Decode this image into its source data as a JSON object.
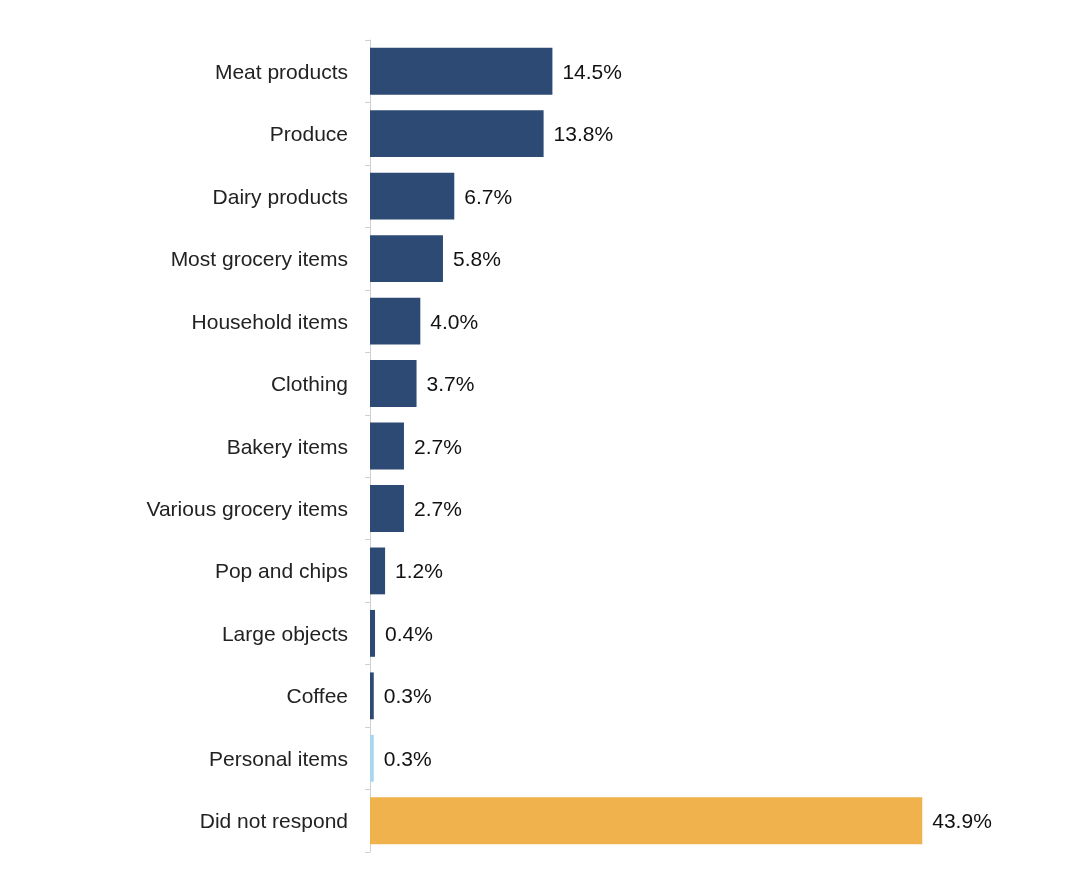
{
  "chart_data": {
    "type": "bar",
    "orientation": "horizontal",
    "categories": [
      "Meat products",
      "Produce",
      "Dairy products",
      "Most grocery items",
      "Household items",
      "Clothing",
      "Bakery items",
      "Various grocery items",
      "Pop and chips",
      "Large objects",
      "Coffee",
      "Personal items",
      "Did not respond"
    ],
    "values": [
      14.5,
      13.8,
      6.7,
      5.8,
      4.0,
      3.7,
      2.7,
      2.7,
      1.2,
      0.4,
      0.3,
      0.3,
      43.9
    ],
    "value_labels": [
      "14.5%",
      "13.8%",
      "6.7%",
      "5.8%",
      "4.0%",
      "3.7%",
      "2.7%",
      "2.7%",
      "1.2%",
      "0.4%",
      "0.3%",
      "0.3%",
      "43.9%"
    ],
    "colors": [
      "#2c4a74",
      "#2c4a74",
      "#2c4a74",
      "#2c4a74",
      "#2c4a74",
      "#2c4a74",
      "#2c4a74",
      "#2c4a74",
      "#2c4a74",
      "#2c4a74",
      "#2c4a74",
      "#a9d6ee",
      "#efb24c"
    ],
    "grid": false
  }
}
